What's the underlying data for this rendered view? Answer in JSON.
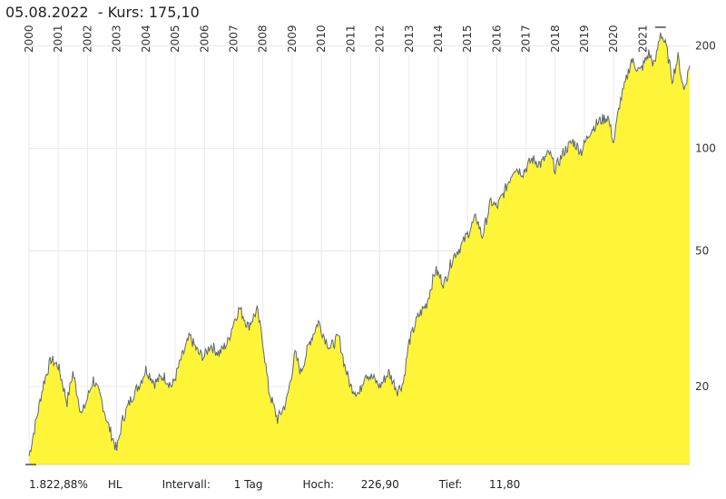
{
  "header": {
    "date": "05.08.2022",
    "sep": "  - ",
    "kurs_label": "Kurs:",
    "kurs_value": "175,10"
  },
  "footer": {
    "performance": "1.822,88%",
    "hl": "HL",
    "interval_label": "Intervall:",
    "interval_value": "1 Tag",
    "high_label": "Hoch:",
    "high_value": "226,90",
    "low_label": "Tief:",
    "low_value": "11,80"
  },
  "colors": {
    "area": "#fff538",
    "line": "#5f6770",
    "grid": "#e9e9e9"
  },
  "chart_data": {
    "type": "area",
    "log_scale": true,
    "grid": true,
    "ylim": [
      11.8,
      226.9
    ],
    "y_ticks": [
      20,
      50,
      100,
      200
    ],
    "x_years": [
      "2000",
      "2001",
      "2002",
      "2003",
      "2004",
      "2005",
      "2006",
      "2007",
      "2008",
      "2009",
      "2010",
      "2011",
      "2012",
      "2013",
      "2014",
      "2015",
      "2016",
      "2017",
      "2018",
      "2019",
      "2020",
      "2021"
    ],
    "x_range": [
      2000.0,
      2022.6
    ],
    "series": [
      {
        "x": [
          2000.0,
          2000.25,
          2000.5,
          2000.75,
          2001.0,
          2001.3,
          2001.5,
          2001.8,
          2002.0,
          2002.2,
          2002.5,
          2002.7,
          2003.0,
          2003.2,
          2003.5,
          2003.8,
          2004.0,
          2004.3,
          2004.6,
          2004.9,
          2005.2,
          2005.5,
          2005.8,
          2006.0,
          2006.2,
          2006.5,
          2006.8,
          2007.0,
          2007.2,
          2007.5,
          2007.8,
          2008.0,
          2008.2,
          2008.5,
          2008.8,
          2008.95,
          2009.1,
          2009.3,
          2009.6,
          2009.9,
          2010.1,
          2010.3,
          2010.6,
          2010.8,
          2011.0,
          2011.3,
          2011.5,
          2011.8,
          2012.0,
          2012.3,
          2012.6,
          2012.8,
          2013.0,
          2013.3,
          2013.6,
          2013.9,
          2014.2,
          2014.5,
          2014.8,
          2015.0,
          2015.3,
          2015.5,
          2015.8,
          2016.0,
          2016.3,
          2016.6,
          2016.9,
          2017.2,
          2017.5,
          2017.8,
          2018.0,
          2018.3,
          2018.6,
          2018.9,
          2019.2,
          2019.5,
          2019.8,
          2020.0,
          2020.2,
          2020.4,
          2020.6,
          2020.9,
          2021.2,
          2021.4,
          2021.6,
          2021.8,
          2022.0,
          2022.2,
          2022.4,
          2022.6
        ],
        "values": [
          12.5,
          16,
          20.5,
          24,
          23,
          18,
          22,
          16.5,
          18.5,
          21,
          18,
          15.5,
          13,
          16,
          18.5,
          20.5,
          22.5,
          20.5,
          21.5,
          20,
          24,
          28,
          25,
          24.5,
          26.5,
          25,
          27,
          31,
          34,
          30,
          33.5,
          27,
          19.5,
          16,
          18,
          21,
          25,
          22,
          27,
          31,
          28,
          26,
          28,
          23,
          20,
          19,
          22,
          21,
          20,
          22,
          19.5,
          20.5,
          27,
          32,
          35,
          44,
          40,
          48,
          52,
          56,
          63,
          55,
          70,
          67,
          76,
          88,
          85,
          93,
          90,
          97,
          87,
          98,
          105,
          98,
          113,
          120,
          124,
          104,
          135,
          155,
          182,
          168,
          190,
          175,
          220,
          198,
          160,
          185,
          148,
          175
        ]
      }
    ]
  }
}
